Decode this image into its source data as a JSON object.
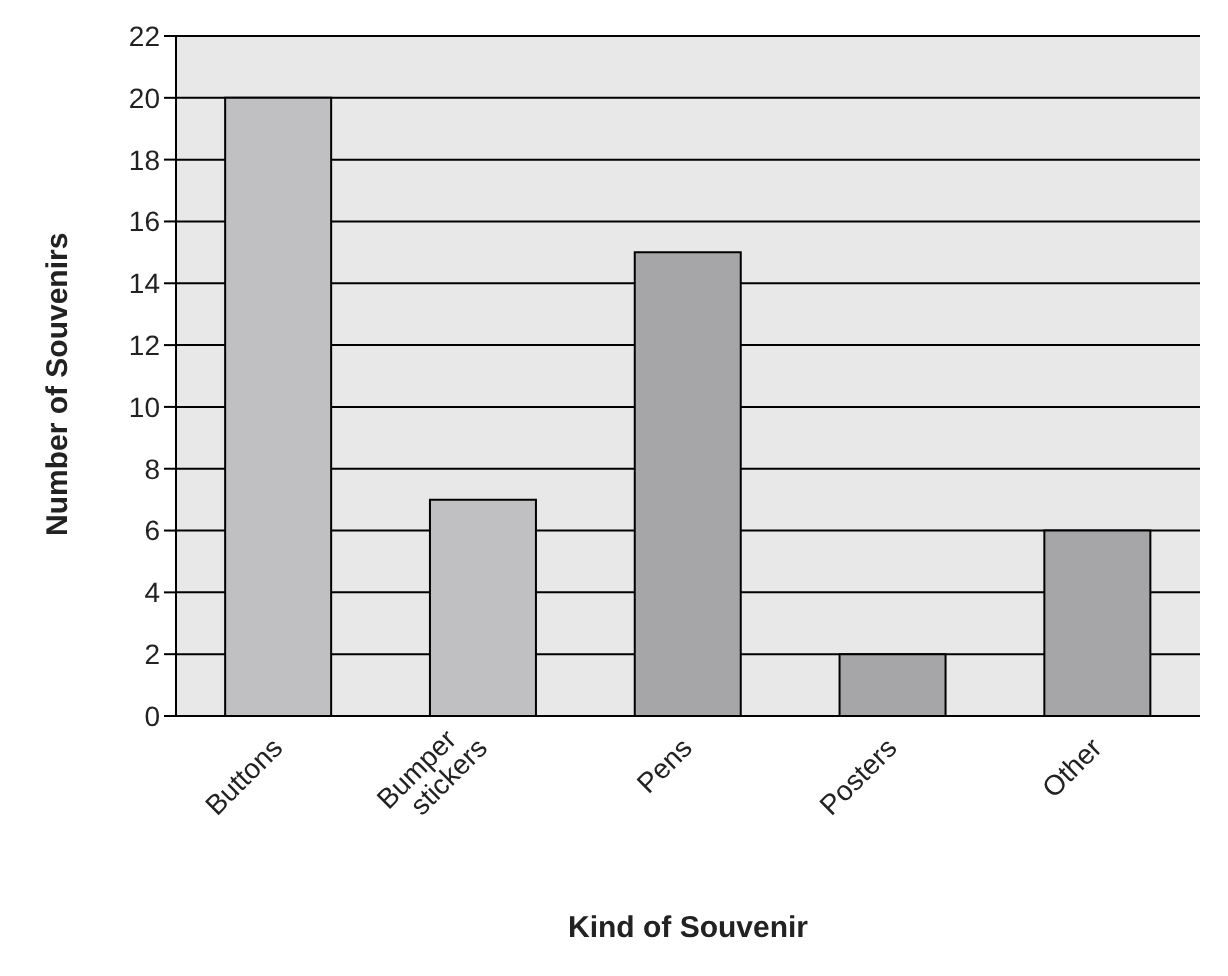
{
  "chart_data": {
    "type": "bar",
    "xlabel": "Kind of Souvenir",
    "ylabel": "Number of Souvenirs",
    "categories": [
      "Buttons",
      "Bumper stickers",
      "Pens",
      "Posters",
      "Other"
    ],
    "values": [
      20,
      7,
      15,
      2,
      6
    ],
    "colors": [
      "#c0c0c2",
      "#c0c0c2",
      "#a6a6a8",
      "#a6a6a8",
      "#a6a6a8"
    ],
    "ylim": [
      0,
      22
    ],
    "yticks": [
      0,
      2,
      4,
      6,
      8,
      10,
      12,
      14,
      16,
      18,
      20,
      22
    ],
    "grid": "y"
  }
}
